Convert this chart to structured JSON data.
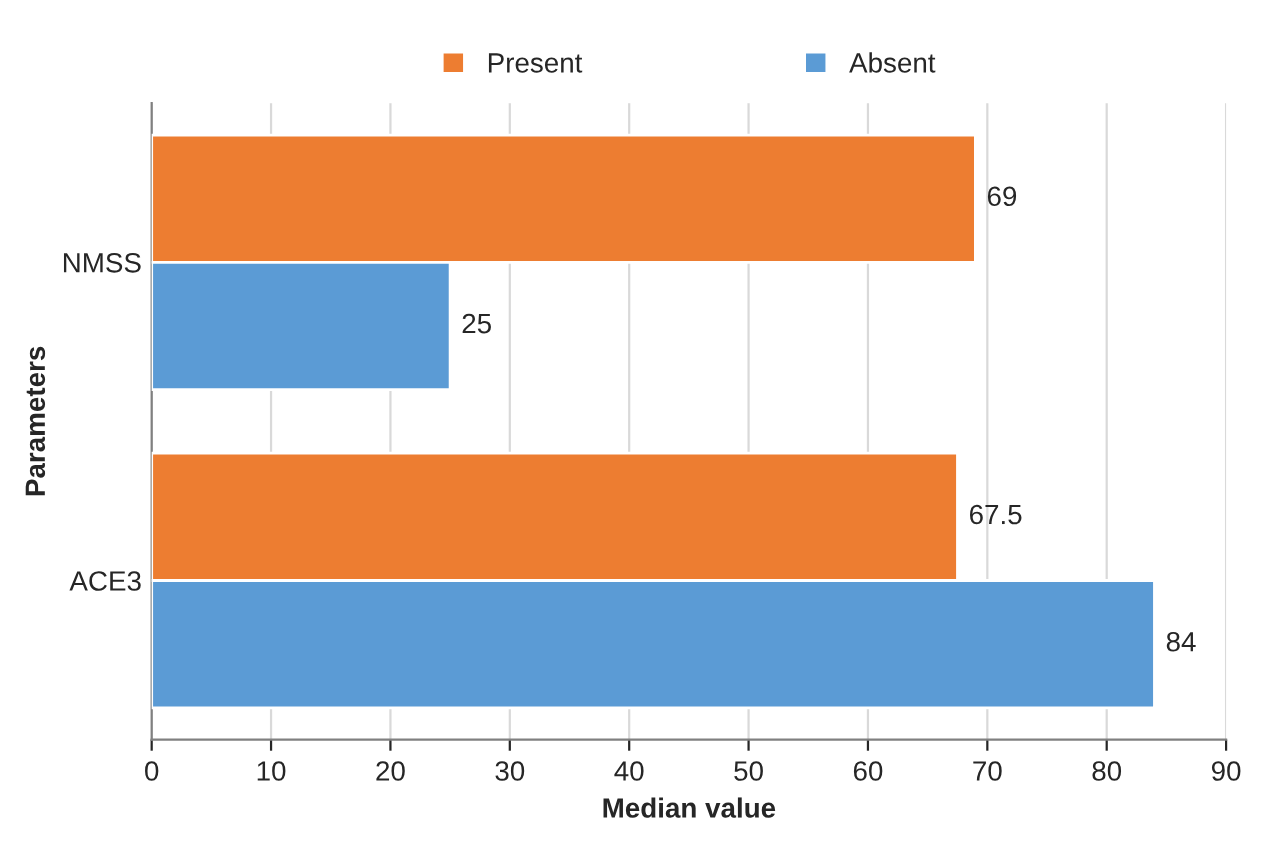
{
  "chart_data": {
    "type": "bar",
    "orientation": "horizontal",
    "xlabel": "Median value",
    "ylabel": "Parameters",
    "categories": [
      "NMSS",
      "ACE3"
    ],
    "series": [
      {
        "name": "Present",
        "color": "#ed7d31",
        "values": [
          69,
          67.5
        ]
      },
      {
        "name": "Absent",
        "color": "#5b9bd5",
        "values": [
          25,
          84
        ]
      }
    ],
    "xlim": [
      0,
      90
    ],
    "xticks": [
      0,
      10,
      20,
      30,
      40,
      50,
      60,
      70,
      80,
      90
    ],
    "grid": "x",
    "legend": "top",
    "data_labels": true
  }
}
